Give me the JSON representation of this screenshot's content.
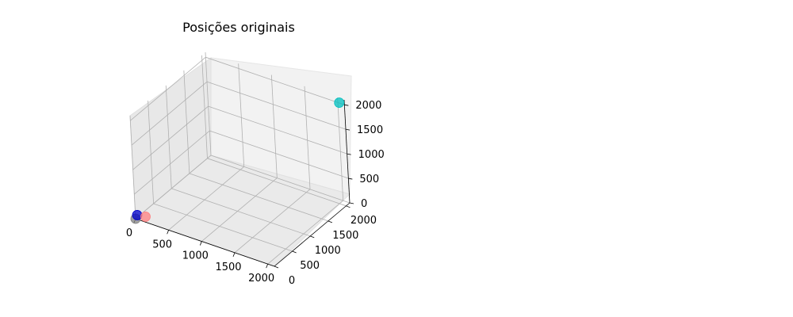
{
  "chart_data": {
    "type": "scatter",
    "projection": "3d",
    "title": "Posições originais",
    "grid": true,
    "xlim": [
      0,
      2100
    ],
    "ylim": [
      0,
      2100
    ],
    "zlim": [
      0,
      2100
    ],
    "x_ticks": [
      "0",
      "500",
      "1000",
      "1500",
      "2000"
    ],
    "y_ticks": [
      "0",
      "500",
      "1000",
      "1500",
      "2000"
    ],
    "z_ticks": [
      "0",
      "500",
      "1000",
      "1500",
      "2000"
    ],
    "points": [
      {
        "x": 0,
        "y": 0,
        "z": 0,
        "color": "#808080"
      },
      {
        "x": 10,
        "y": 30,
        "z": 60,
        "color": "#0000cc"
      },
      {
        "x": 120,
        "y": 60,
        "z": 60,
        "color": "#ff8080"
      },
      {
        "x": 2050,
        "y": 2050,
        "z": 2050,
        "color": "#00bfbf"
      }
    ]
  }
}
